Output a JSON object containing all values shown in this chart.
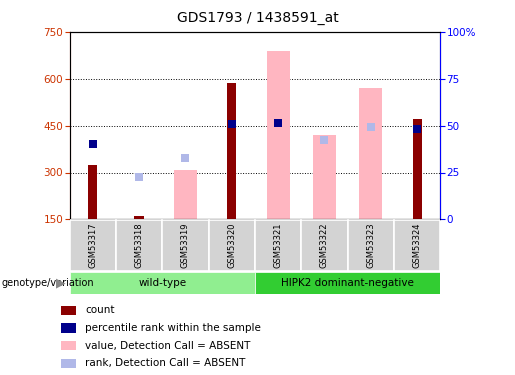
{
  "title": "GDS1793 / 1438591_at",
  "samples": [
    "GSM53317",
    "GSM53318",
    "GSM53319",
    "GSM53320",
    "GSM53321",
    "GSM53322",
    "GSM53323",
    "GSM53324"
  ],
  "count_values": [
    325,
    160,
    null,
    585,
    null,
    null,
    null,
    470
  ],
  "percentile_rank": [
    390,
    null,
    null,
    455,
    460,
    null,
    null,
    440
  ],
  "value_absent": [
    null,
    null,
    308,
    null,
    690,
    420,
    570,
    null
  ],
  "rank_absent": [
    null,
    285,
    348,
    null,
    null,
    405,
    445,
    null
  ],
  "ylim_left": [
    150,
    750
  ],
  "ylim_right": [
    0,
    100
  ],
  "yticks_left": [
    150,
    300,
    450,
    600,
    750
  ],
  "yticks_right": [
    0,
    25,
    50,
    75,
    100
  ],
  "yright_labels": [
    "0",
    "25",
    "50",
    "75",
    "100%"
  ],
  "color_count": "#8b0000",
  "color_percentile": "#00008b",
  "color_value_absent": "#ffb6c1",
  "color_rank_absent": "#b0b8e8",
  "wt_color": "#90ee90",
  "hipk_color": "#32cd32",
  "wt_label": "wild-type",
  "hipk_label": "HIPK2 dominant-negative",
  "group_label": "genotype/variation",
  "legend_items": [
    "count",
    "percentile rank within the sample",
    "value, Detection Call = ABSENT",
    "rank, Detection Call = ABSENT"
  ]
}
